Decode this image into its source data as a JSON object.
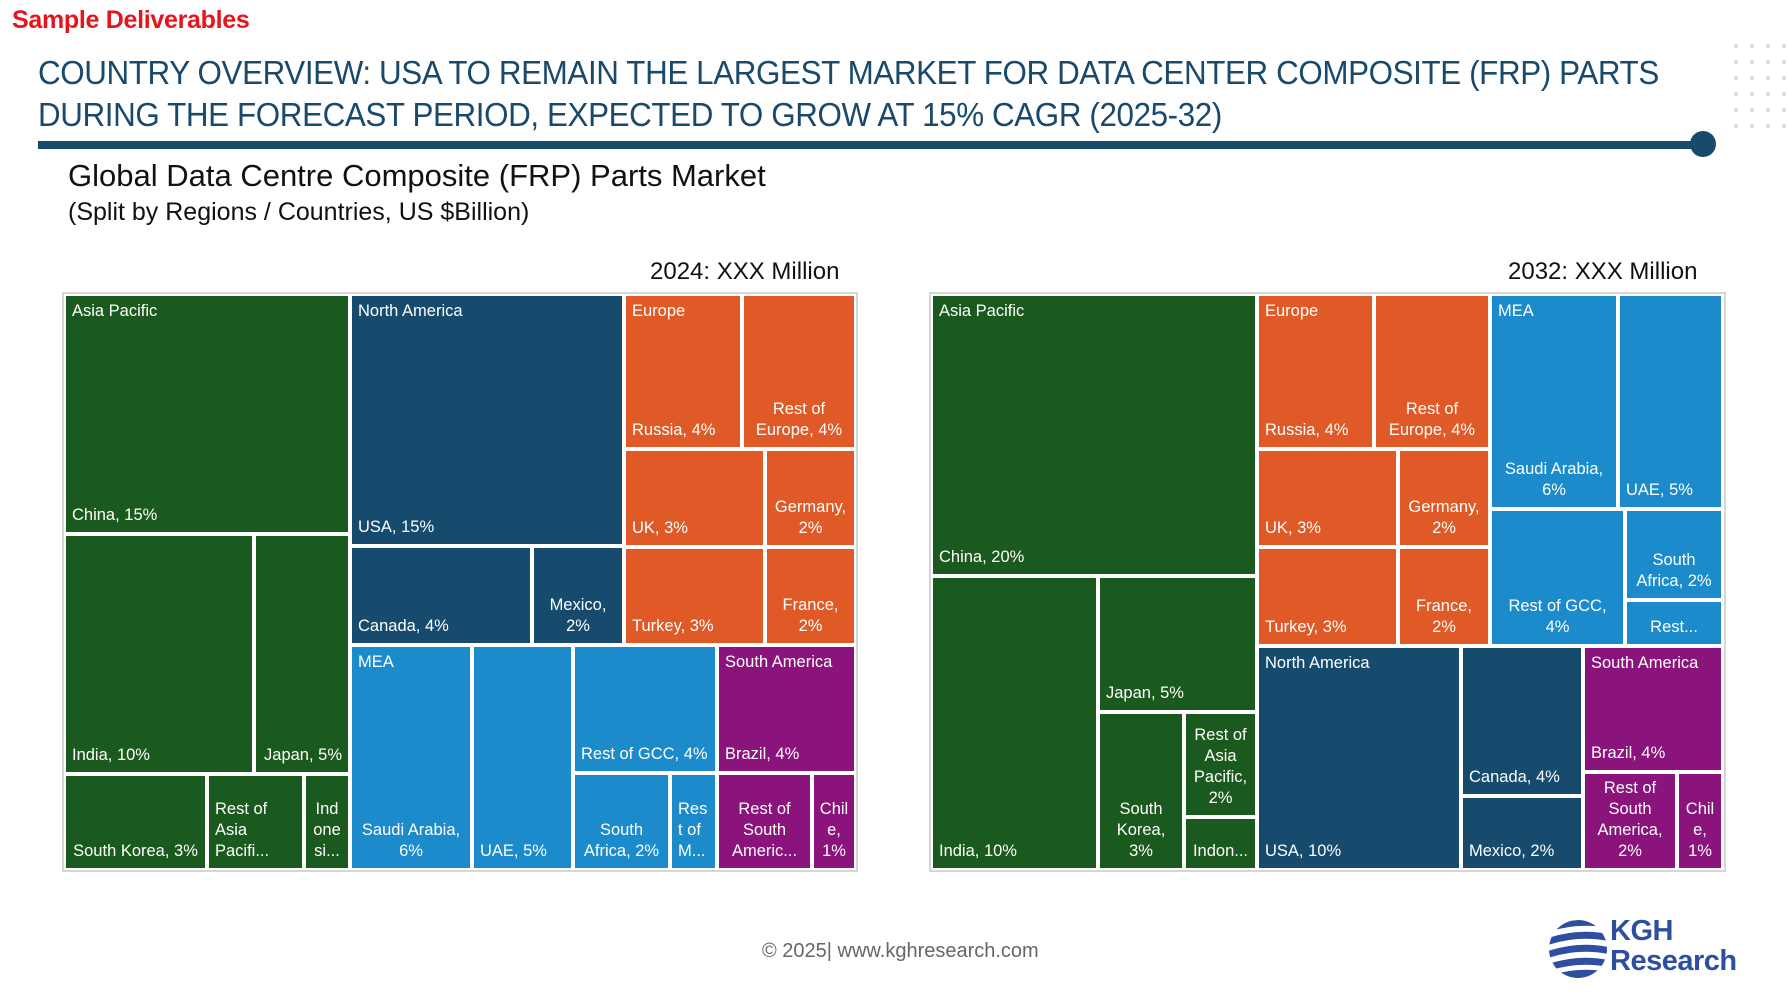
{
  "header": {
    "sample_label": "Sample Deliverables",
    "headline_line1": "COUNTRY OVERVIEW: USA TO REMAIN THE LARGEST MARKET FOR DATA CENTER COMPOSITE (FRP) PARTS",
    "headline_line2": "DURING THE FORECAST PERIOD, EXPECTED TO GROW AT 15% CAGR (2025-32)"
  },
  "subtitle": {
    "title": "Global Data Centre Composite (FRP) Parts Market",
    "note": "(Split by Regions / Countries, US $Billion)"
  },
  "colors": {
    "Asia Pacific": "#1b5a1e",
    "North America": "#164b6d",
    "Europe": "#e05a27",
    "MEA": "#1b8bcb",
    "South America": "#8b137c"
  },
  "chart_data": [
    {
      "type": "treemap",
      "title": "2024: XXX Million",
      "unit": "% share",
      "groups": [
        {
          "name": "Asia Pacific",
          "items": [
            {
              "label": "China, 15%",
              "name": "China",
              "value": 15
            },
            {
              "label": "India, 10%",
              "name": "India",
              "value": 10
            },
            {
              "label": "Japan, 5%",
              "name": "Japan",
              "value": 5
            },
            {
              "label": "South Korea, 3%",
              "name": "South Korea",
              "value": 3
            },
            {
              "label": "Rest of Asia Pacifi...",
              "name": "Rest of Asia Pacific",
              "value": null
            },
            {
              "label": "Ind one si...",
              "name": "Indonesia",
              "value": null
            }
          ]
        },
        {
          "name": "North America",
          "items": [
            {
              "label": "USA, 15%",
              "name": "USA",
              "value": 15
            },
            {
              "label": "Canada, 4%",
              "name": "Canada",
              "value": 4
            },
            {
              "label": "Mexico, 2%",
              "name": "Mexico",
              "value": 2
            }
          ]
        },
        {
          "name": "Europe",
          "items": [
            {
              "label": "Russia, 4%",
              "name": "Russia",
              "value": 4
            },
            {
              "label": "Rest of Europe, 4%",
              "name": "Rest of Europe",
              "value": 4
            },
            {
              "label": "UK, 3%",
              "name": "UK",
              "value": 3
            },
            {
              "label": "Germany, 2%",
              "name": "Germany",
              "value": 2
            },
            {
              "label": "Turkey, 3%",
              "name": "Turkey",
              "value": 3
            },
            {
              "label": "France, 2%",
              "name": "France",
              "value": 2
            }
          ]
        },
        {
          "name": "MEA",
          "items": [
            {
              "label": "Saudi Arabia, 6%",
              "name": "Saudi Arabia",
              "value": 6
            },
            {
              "label": "UAE, 5%",
              "name": "UAE",
              "value": 5
            },
            {
              "label": "Rest of GCC, 4%",
              "name": "Rest of GCC",
              "value": 4
            },
            {
              "label": "South Africa, 2%",
              "name": "South Africa",
              "value": 2
            },
            {
              "label": "Res t of M...",
              "name": "Rest of MEA",
              "value": null
            }
          ]
        },
        {
          "name": "South America",
          "items": [
            {
              "label": "Brazil, 4%",
              "name": "Brazil",
              "value": 4
            },
            {
              "label": "Rest of South Americ...",
              "name": "Rest of South America",
              "value": null
            },
            {
              "label": "Chil e, 1%",
              "name": "Chile",
              "value": 1
            }
          ]
        }
      ]
    },
    {
      "type": "treemap",
      "title": "2032: XXX Million",
      "unit": "% share",
      "groups": [
        {
          "name": "Asia Pacific",
          "items": [
            {
              "label": "China, 20%",
              "name": "China",
              "value": 20
            },
            {
              "label": "India, 10%",
              "name": "India",
              "value": 10
            },
            {
              "label": "Japan, 5%",
              "name": "Japan",
              "value": 5
            },
            {
              "label": "South Korea, 3%",
              "name": "South Korea",
              "value": 3
            },
            {
              "label": "Rest of Asia Pacific, 2%",
              "name": "Rest of Asia Pacific",
              "value": 2
            },
            {
              "label": "Indon...",
              "name": "Indonesia",
              "value": null
            }
          ]
        },
        {
          "name": "Europe",
          "items": [
            {
              "label": "Russia, 4%",
              "name": "Russia",
              "value": 4
            },
            {
              "label": "Rest of Europe, 4%",
              "name": "Rest of Europe",
              "value": 4
            },
            {
              "label": "UK, 3%",
              "name": "UK",
              "value": 3
            },
            {
              "label": "Germany, 2%",
              "name": "Germany",
              "value": 2
            },
            {
              "label": "Turkey, 3%",
              "name": "Turkey",
              "value": 3
            },
            {
              "label": "France, 2%",
              "name": "France",
              "value": 2
            }
          ]
        },
        {
          "name": "MEA",
          "items": [
            {
              "label": "Saudi Arabia, 6%",
              "name": "Saudi Arabia",
              "value": 6
            },
            {
              "label": "UAE, 5%",
              "name": "UAE",
              "value": 5
            },
            {
              "label": "Rest of GCC, 4%",
              "name": "Rest of GCC",
              "value": 4
            },
            {
              "label": "South Africa, 2%",
              "name": "South Africa",
              "value": 2
            },
            {
              "label": "Rest...",
              "name": "Rest of MEA",
              "value": null
            }
          ]
        },
        {
          "name": "North America",
          "items": [
            {
              "label": "USA, 10%",
              "name": "USA",
              "value": 10
            },
            {
              "label": "Canada, 4%",
              "name": "Canada",
              "value": 4
            },
            {
              "label": "Mexico, 2%",
              "name": "Mexico",
              "value": 2
            }
          ]
        },
        {
          "name": "South America",
          "items": [
            {
              "label": "Brazil, 4%",
              "name": "Brazil",
              "value": 4
            },
            {
              "label": "Rest of South America, 2%",
              "name": "Rest of South America",
              "value": 2
            },
            {
              "label": "Chil e, 1%",
              "name": "Chile",
              "value": 1
            }
          ]
        }
      ]
    }
  ],
  "footer": {
    "copyright": "© 2025| www.kghresearch.com",
    "logo_line1": "KGH",
    "logo_line2": "Research",
    "logo_icon": "globe-stripes-icon"
  }
}
